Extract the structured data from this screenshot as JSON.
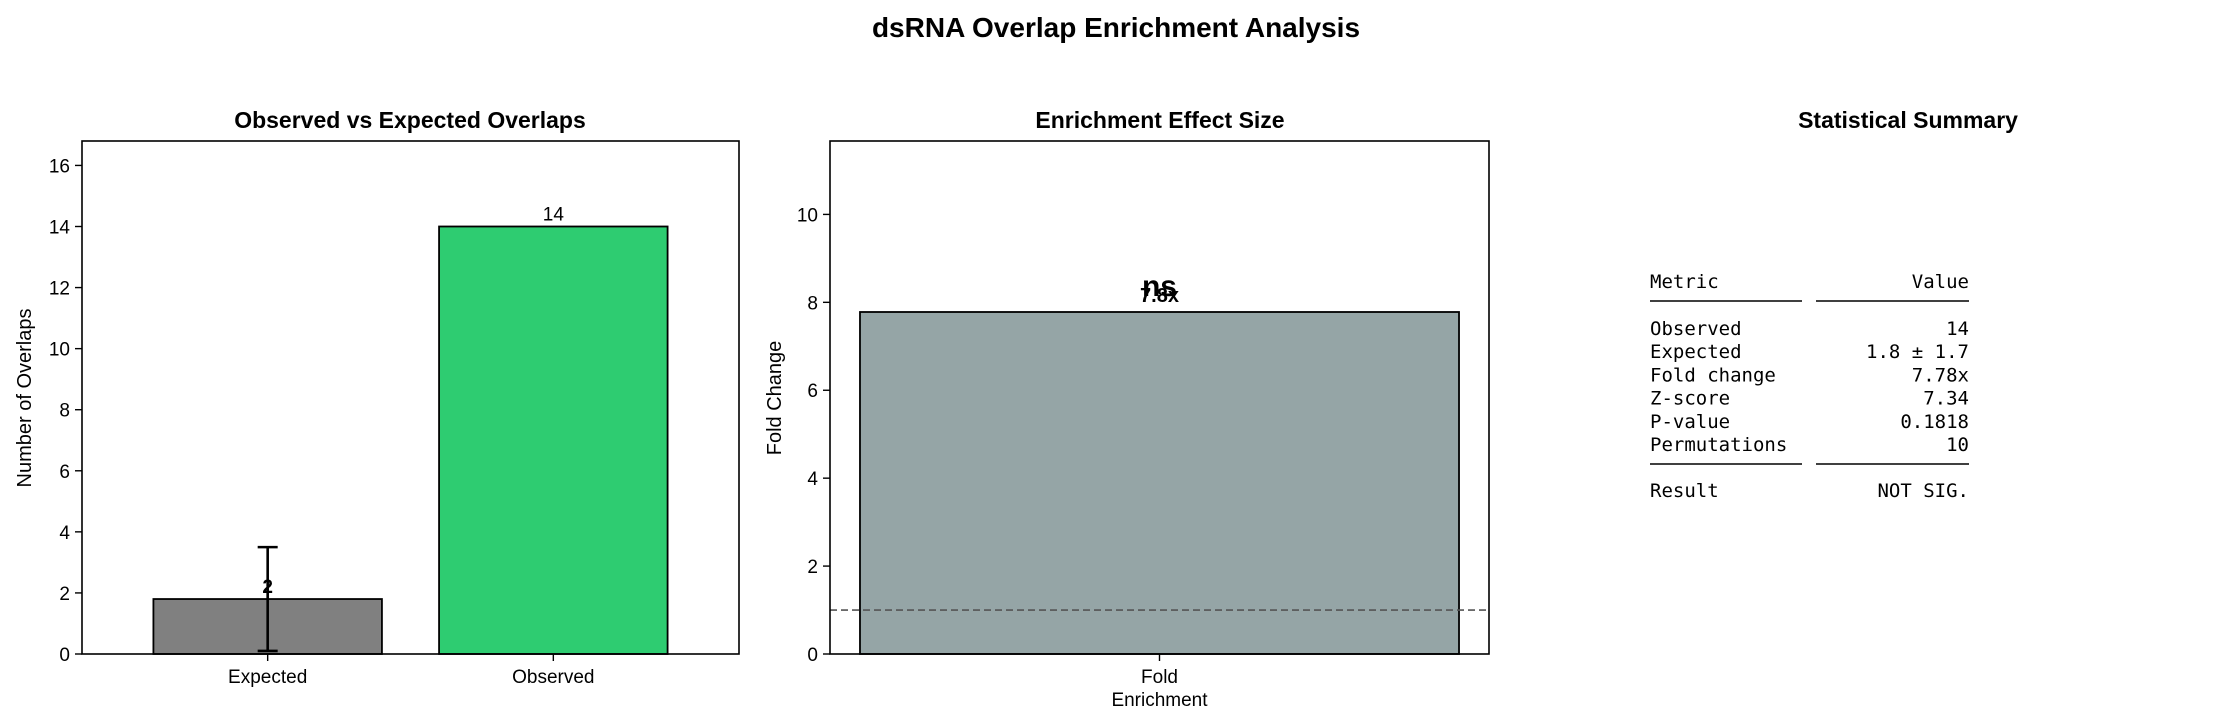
{
  "figure": {
    "title": "dsRNA Overlap Enrichment Analysis"
  },
  "chart_data": [
    {
      "type": "bar",
      "title": "Observed vs Expected Overlaps",
      "xlabel": "",
      "ylabel": "Number of Overlaps",
      "categories": [
        "Expected",
        "Observed"
      ],
      "values": [
        1.8,
        14
      ],
      "error": [
        1.7,
        0
      ],
      "bar_labels": [
        "2",
        "14"
      ],
      "colors": [
        "#808080",
        "#2ecc71"
      ],
      "ylim": [
        0,
        16.8
      ],
      "yticks": [
        0,
        2,
        4,
        6,
        8,
        10,
        12,
        14,
        16
      ],
      "grid": false
    },
    {
      "type": "bar",
      "title": "Enrichment Effect Size",
      "xlabel": "",
      "ylabel": "Fold Change",
      "categories": [
        "Fold\nEnrichment"
      ],
      "values": [
        7.78
      ],
      "bar_labels": [
        "7.8x"
      ],
      "significance": "ns",
      "colors": [
        "#95a5a6"
      ],
      "reference_line": 1,
      "ylim": [
        0,
        11.67
      ],
      "yticks": [
        0,
        2,
        4,
        6,
        8,
        10
      ],
      "grid": false
    },
    {
      "type": "table",
      "title": "Statistical Summary",
      "header": {
        "metric": "Metric",
        "value": "Value"
      },
      "rows": [
        {
          "metric": "Observed",
          "value": "14"
        },
        {
          "metric": "Expected",
          "value": "1.8 ± 1.7"
        },
        {
          "metric": "Fold change",
          "value": "7.78x"
        },
        {
          "metric": "Z-score",
          "value": "7.34"
        },
        {
          "metric": "P-value",
          "value": "0.1818"
        },
        {
          "metric": "Permutations",
          "value": "10"
        }
      ],
      "result": {
        "metric": "Result",
        "value": "NOT SIG."
      }
    }
  ]
}
